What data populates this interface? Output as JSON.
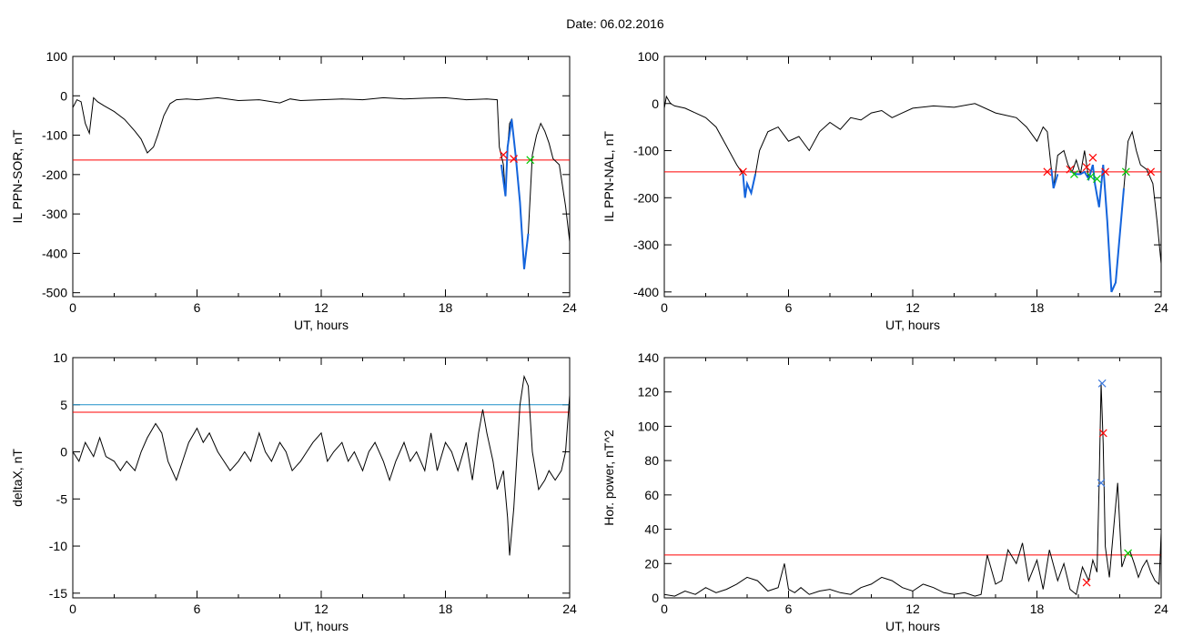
{
  "header": {
    "date": "Date:  06.02.2016"
  },
  "colors": {
    "frame": "#000000",
    "threshold_red": "#ff0000",
    "threshold_blue": "#1e90c8",
    "event_blue": "#1464dc",
    "marker_green": "#00cc00",
    "marker_red": "#ff0000",
    "marker_blue": "#3c78dc"
  },
  "chart_data": [
    {
      "type": "line",
      "panel": "top-left",
      "xlabel": "UT, hours",
      "ylabel": "IL PPN-SOR, nT",
      "xlim": [
        0,
        24
      ],
      "ylim": [
        -510,
        100
      ],
      "xticks": [
        0,
        6,
        12,
        18,
        24
      ],
      "yticks": [
        100,
        0,
        -100,
        -200,
        -300,
        -400,
        -500
      ],
      "threshold": -163,
      "series": [
        {
          "x": [
            0,
            0.2,
            0.4,
            0.6,
            0.8,
            1,
            1.2,
            1.5,
            2,
            2.5,
            3,
            3.3,
            3.6,
            3.9,
            4.1,
            4.4,
            4.7,
            5,
            5.5,
            6,
            7,
            8,
            9,
            10,
            10.5,
            11,
            12,
            13,
            14,
            15,
            16,
            17,
            18,
            19,
            20,
            20.5,
            20.6,
            20.8,
            20.9,
            21,
            21.1,
            21.2,
            21.4,
            21.6,
            21.8,
            22,
            22.2,
            22.4,
            22.6,
            22.8,
            23,
            23.2,
            23.5,
            23.8,
            24
          ],
          "y": [
            -30,
            -10,
            -15,
            -70,
            -95,
            -5,
            -15,
            -25,
            -40,
            -60,
            -90,
            -110,
            -145,
            -130,
            -100,
            -50,
            -20,
            -10,
            -8,
            -10,
            -5,
            -12,
            -10,
            -18,
            -8,
            -12,
            -10,
            -8,
            -10,
            -5,
            -8,
            -6,
            -5,
            -10,
            -8,
            -10,
            -130,
            -175,
            -255,
            -130,
            -70,
            -60,
            -155,
            -270,
            -440,
            -350,
            -150,
            -100,
            -70,
            -90,
            -120,
            -160,
            -175,
            -280,
            -370
          ]
        }
      ],
      "events": [
        {
          "x": [
            20.7,
            20.9,
            21.0,
            21.2,
            21.4,
            21.6,
            21.8,
            22.0
          ],
          "y": [
            -175,
            -255,
            -130,
            -60,
            -155,
            -270,
            -440,
            -350
          ]
        }
      ],
      "markers": [
        {
          "x": 20.8,
          "y": -150,
          "color": "#ff0000"
        },
        {
          "x": 21.3,
          "y": -160,
          "color": "#ff0000"
        },
        {
          "x": 22.1,
          "y": -163,
          "color": "#00cc00"
        }
      ]
    },
    {
      "type": "line",
      "panel": "top-right",
      "xlabel": "UT, hours",
      "ylabel": "IL PPN-NAL, nT",
      "xlim": [
        0,
        24
      ],
      "ylim": [
        -410,
        100
      ],
      "xticks": [
        0,
        6,
        12,
        18,
        24
      ],
      "yticks": [
        100,
        0,
        -100,
        -200,
        -300,
        -400
      ],
      "threshold": -145,
      "series": [
        {
          "x": [
            0,
            0.1,
            0.3,
            0.5,
            1,
            1.5,
            2,
            2.5,
            3,
            3.5,
            3.8,
            3.9,
            4,
            4.2,
            4.4,
            4.6,
            5,
            5.5,
            6,
            6.5,
            7,
            7.5,
            8,
            8.5,
            9,
            9.5,
            10,
            10.5,
            11,
            11.5,
            12,
            13,
            14,
            15,
            16,
            17,
            17.5,
            18,
            18.3,
            18.5,
            18.7,
            18.8,
            19,
            19.3,
            19.5,
            19.7,
            19.9,
            20.1,
            20.3,
            20.5,
            20.7,
            20.8,
            21,
            21.2,
            21.4,
            21.6,
            21.8,
            22,
            22.2,
            22.4,
            22.6,
            22.8,
            23,
            23.3,
            23.6,
            23.8,
            24
          ],
          "y": [
            -10,
            15,
            0,
            -5,
            -10,
            -20,
            -30,
            -50,
            -90,
            -130,
            -150,
            -200,
            -170,
            -190,
            -150,
            -100,
            -60,
            -50,
            -80,
            -70,
            -100,
            -60,
            -40,
            -55,
            -30,
            -35,
            -20,
            -15,
            -30,
            -20,
            -10,
            -5,
            -8,
            0,
            -20,
            -30,
            -50,
            -80,
            -50,
            -60,
            -140,
            -180,
            -110,
            -100,
            -130,
            -145,
            -120,
            -150,
            -100,
            -160,
            -130,
            -170,
            -220,
            -130,
            -250,
            -400,
            -380,
            -280,
            -180,
            -80,
            -60,
            -100,
            -130,
            -140,
            -170,
            -250,
            -340
          ]
        }
      ],
      "events": [
        {
          "x": [
            3.8,
            3.9,
            4,
            4.2,
            4.4
          ],
          "y": [
            -150,
            -200,
            -170,
            -190,
            -150
          ]
        },
        {
          "x": [
            18.7,
            18.8,
            19.0
          ],
          "y": [
            -140,
            -180,
            -150
          ]
        },
        {
          "x": [
            19.6,
            19.7,
            19.9,
            20.1,
            20.3,
            20.5,
            20.7,
            20.8,
            21,
            21.2,
            21.4,
            21.6,
            21.8,
            22,
            22.2
          ],
          "y": [
            -145,
            -145,
            -150,
            -150,
            -145,
            -160,
            -130,
            -170,
            -220,
            -130,
            -250,
            -400,
            -380,
            -280,
            -180
          ]
        }
      ],
      "markers": [
        {
          "x": 3.8,
          "y": -145,
          "color": "#ff0000"
        },
        {
          "x": 18.5,
          "y": -145,
          "color": "#ff0000"
        },
        {
          "x": 19.6,
          "y": -140,
          "color": "#ff0000"
        },
        {
          "x": 19.8,
          "y": -150,
          "color": "#00cc00"
        },
        {
          "x": 20.4,
          "y": -135,
          "color": "#ff0000"
        },
        {
          "x": 20.6,
          "y": -155,
          "color": "#00cc00"
        },
        {
          "x": 20.7,
          "y": -115,
          "color": "#ff0000"
        },
        {
          "x": 20.9,
          "y": -160,
          "color": "#00cc00"
        },
        {
          "x": 21.3,
          "y": -145,
          "color": "#ff0000"
        },
        {
          "x": 22.3,
          "y": -145,
          "color": "#00cc00"
        },
        {
          "x": 23.5,
          "y": -145,
          "color": "#ff0000"
        }
      ]
    },
    {
      "type": "line",
      "panel": "bottom-left",
      "xlabel": "UT, hours",
      "ylabel": "deltaX, nT",
      "xlim": [
        0,
        24
      ],
      "ylim": [
        -15.5,
        10
      ],
      "xticks": [
        0,
        6,
        12,
        18,
        24
      ],
      "yticks": [
        10,
        5,
        0,
        -5,
        -10,
        -15
      ],
      "thresholds": [
        {
          "value": 5,
          "color": "#1e90c8"
        },
        {
          "value": 4.2,
          "color": "#ff0000"
        }
      ],
      "series": [
        {
          "x": [
            0,
            0.3,
            0.6,
            1,
            1.3,
            1.6,
            2,
            2.3,
            2.6,
            3,
            3.3,
            3.6,
            4,
            4.3,
            4.6,
            5,
            5.3,
            5.6,
            6,
            6.3,
            6.6,
            7,
            7.3,
            7.6,
            8,
            8.3,
            8.6,
            9,
            9.3,
            9.6,
            10,
            10.3,
            10.6,
            11,
            11.3,
            11.6,
            12,
            12.3,
            12.6,
            13,
            13.3,
            13.6,
            14,
            14.3,
            14.6,
            15,
            15.3,
            15.6,
            16,
            16.3,
            16.6,
            17,
            17.3,
            17.6,
            18,
            18.3,
            18.6,
            19,
            19.3,
            19.6,
            19.8,
            20,
            20.3,
            20.5,
            20.8,
            21,
            21.1,
            21.3,
            21.6,
            21.8,
            22,
            22.2,
            22.5,
            22.8,
            23,
            23.3,
            23.6,
            23.8,
            24
          ],
          "y": [
            0,
            -1,
            1,
            -0.5,
            1.5,
            -0.5,
            -1,
            -2,
            -1,
            -2,
            0,
            1.5,
            3,
            2,
            -1,
            -3,
            -1,
            1,
            2.5,
            1,
            2,
            0,
            -1,
            -2,
            -1,
            0,
            -1,
            2,
            0,
            -1,
            1,
            0,
            -2,
            -1,
            0,
            1,
            2,
            -1,
            0,
            1,
            -1,
            0,
            -2,
            0,
            1,
            -1,
            -3,
            -1,
            1,
            -1,
            0,
            -2,
            2,
            -2,
            1,
            0,
            -2,
            1,
            -3,
            2,
            4.5,
            2,
            -1,
            -4,
            -2,
            -7,
            -11,
            -6,
            5,
            8,
            7,
            0,
            -4,
            -3,
            -2,
            -3,
            -2,
            0,
            6
          ]
        }
      ]
    },
    {
      "type": "line",
      "panel": "bottom-right",
      "xlabel": "UT, hours",
      "ylabel": "Hor. power, nT^2",
      "xlim": [
        0,
        24
      ],
      "ylim": [
        0,
        140
      ],
      "xticks": [
        0,
        6,
        12,
        18,
        24
      ],
      "yticks": [
        140,
        120,
        100,
        80,
        60,
        40,
        20,
        0
      ],
      "threshold": 25,
      "series": [
        {
          "x": [
            0,
            0.5,
            1,
            1.5,
            2,
            2.5,
            3,
            3.5,
            4,
            4.5,
            5,
            5.5,
            5.8,
            6,
            6.3,
            6.6,
            7,
            7.5,
            8,
            8.5,
            9,
            9.5,
            10,
            10.5,
            11,
            11.5,
            12,
            12.5,
            13,
            13.5,
            14,
            14.5,
            15,
            15.3,
            15.6,
            16,
            16.3,
            16.6,
            17,
            17.3,
            17.6,
            18,
            18.3,
            18.6,
            19,
            19.3,
            19.6,
            19.9,
            20.2,
            20.5,
            20.7,
            20.9,
            21.0,
            21.1,
            21.2,
            21.3,
            21.5,
            21.7,
            21.9,
            22.1,
            22.3,
            22.5,
            22.7,
            22.9,
            23.1,
            23.3,
            23.5,
            23.7,
            23.9,
            24
          ],
          "y": [
            2,
            1,
            4,
            2,
            6,
            3,
            5,
            8,
            12,
            10,
            4,
            6,
            20,
            5,
            3,
            6,
            2,
            4,
            5,
            3,
            2,
            6,
            8,
            12,
            10,
            6,
            4,
            8,
            6,
            3,
            2,
            3,
            1,
            2,
            25,
            8,
            10,
            28,
            20,
            32,
            10,
            22,
            5,
            28,
            10,
            20,
            5,
            2,
            18,
            10,
            22,
            15,
            65,
            125,
            90,
            30,
            12,
            40,
            67,
            18,
            25,
            27,
            20,
            12,
            18,
            22,
            15,
            10,
            8,
            38
          ]
        }
      ],
      "markers": [
        {
          "x": 21.15,
          "y": 125,
          "color": "#3c78dc"
        },
        {
          "x": 21.2,
          "y": 96,
          "color": "#ff0000"
        },
        {
          "x": 21.1,
          "y": 67,
          "color": "#3c78dc"
        },
        {
          "x": 20.4,
          "y": 9,
          "color": "#ff0000"
        },
        {
          "x": 22.4,
          "y": 26,
          "color": "#00cc00"
        }
      ]
    }
  ]
}
